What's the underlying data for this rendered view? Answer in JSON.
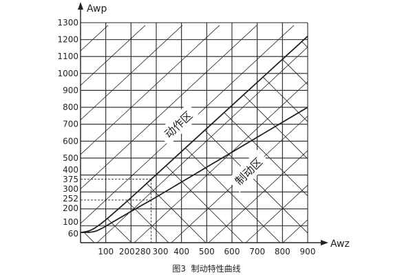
{
  "chart_data": {
    "type": "line",
    "title": "",
    "caption": "图3  制动特性曲线",
    "xlabel": "Awz",
    "ylabel": "Awp",
    "xlim": [
      0,
      900
    ],
    "ylim": [
      0,
      1300
    ],
    "grid": true,
    "x_ticks": [
      100,
      200,
      280,
      300,
      400,
      500,
      600,
      700,
      800,
      900
    ],
    "y_ticks": [
      60,
      100,
      200,
      252,
      300,
      375,
      400,
      500,
      600,
      700,
      800,
      900,
      1000,
      1100,
      1200,
      1300
    ],
    "series": [
      {
        "points": [
          [
            0,
            60
          ],
          [
            40,
            70
          ],
          [
            80,
            110
          ],
          [
            120,
            160
          ],
          [
            200,
            265
          ],
          [
            280,
            375
          ],
          [
            900,
            1220
          ]
        ]
      },
      {
        "points": [
          [
            0,
            60
          ],
          [
            50,
            62
          ],
          [
            80,
            80
          ],
          [
            120,
            115
          ],
          [
            200,
            185
          ],
          [
            280,
            252
          ],
          [
            900,
            800
          ]
        ]
      }
    ],
    "reference_lines": [
      {
        "x": 280,
        "y": 375,
        "style": "dashed"
      },
      {
        "x": 280,
        "y": 252,
        "style": "dashed"
      }
    ],
    "annotations": [
      {
        "text": "动作区"
      },
      {
        "text": "制动区"
      }
    ],
    "line_color": "#222222"
  }
}
